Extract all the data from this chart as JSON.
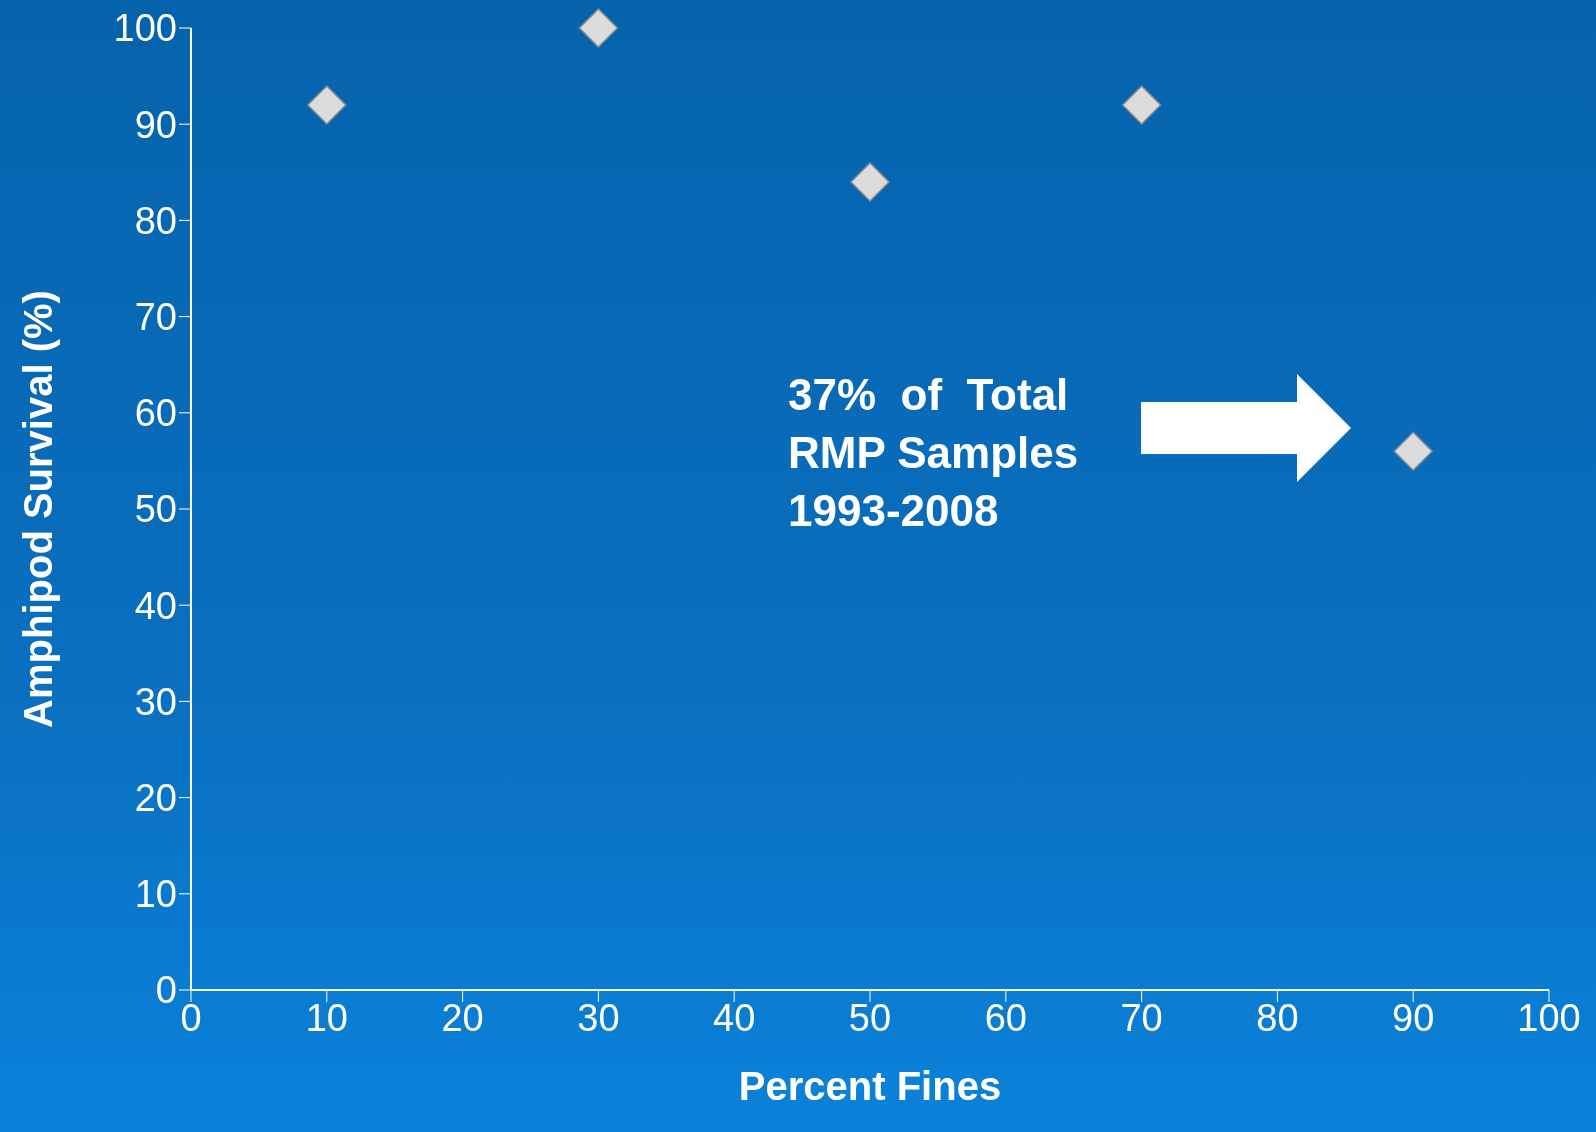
{
  "chart_data": {
    "type": "scatter",
    "xlabel": "Percent Fines",
    "ylabel": "Amphipod Survival (%)",
    "x": [
      10,
      30,
      50,
      70,
      90
    ],
    "series": [
      {
        "color": "#dcdcdc",
        "values": [
          92,
          100,
          84,
          92,
          56
        ]
      }
    ],
    "xlim": [
      0,
      100
    ],
    "xticks": [
      0,
      10,
      20,
      30,
      40,
      50,
      60,
      70,
      80,
      90,
      100
    ],
    "ylim": [
      0,
      100
    ],
    "yticks": [
      0,
      10,
      20,
      30,
      40,
      50,
      60,
      70,
      80,
      90,
      100
    ],
    "marker": "diamond",
    "grid": false,
    "legend": false,
    "annotations": [
      "37%  of  Total\nRMP Samples\n1993-2008"
    ]
  }
}
